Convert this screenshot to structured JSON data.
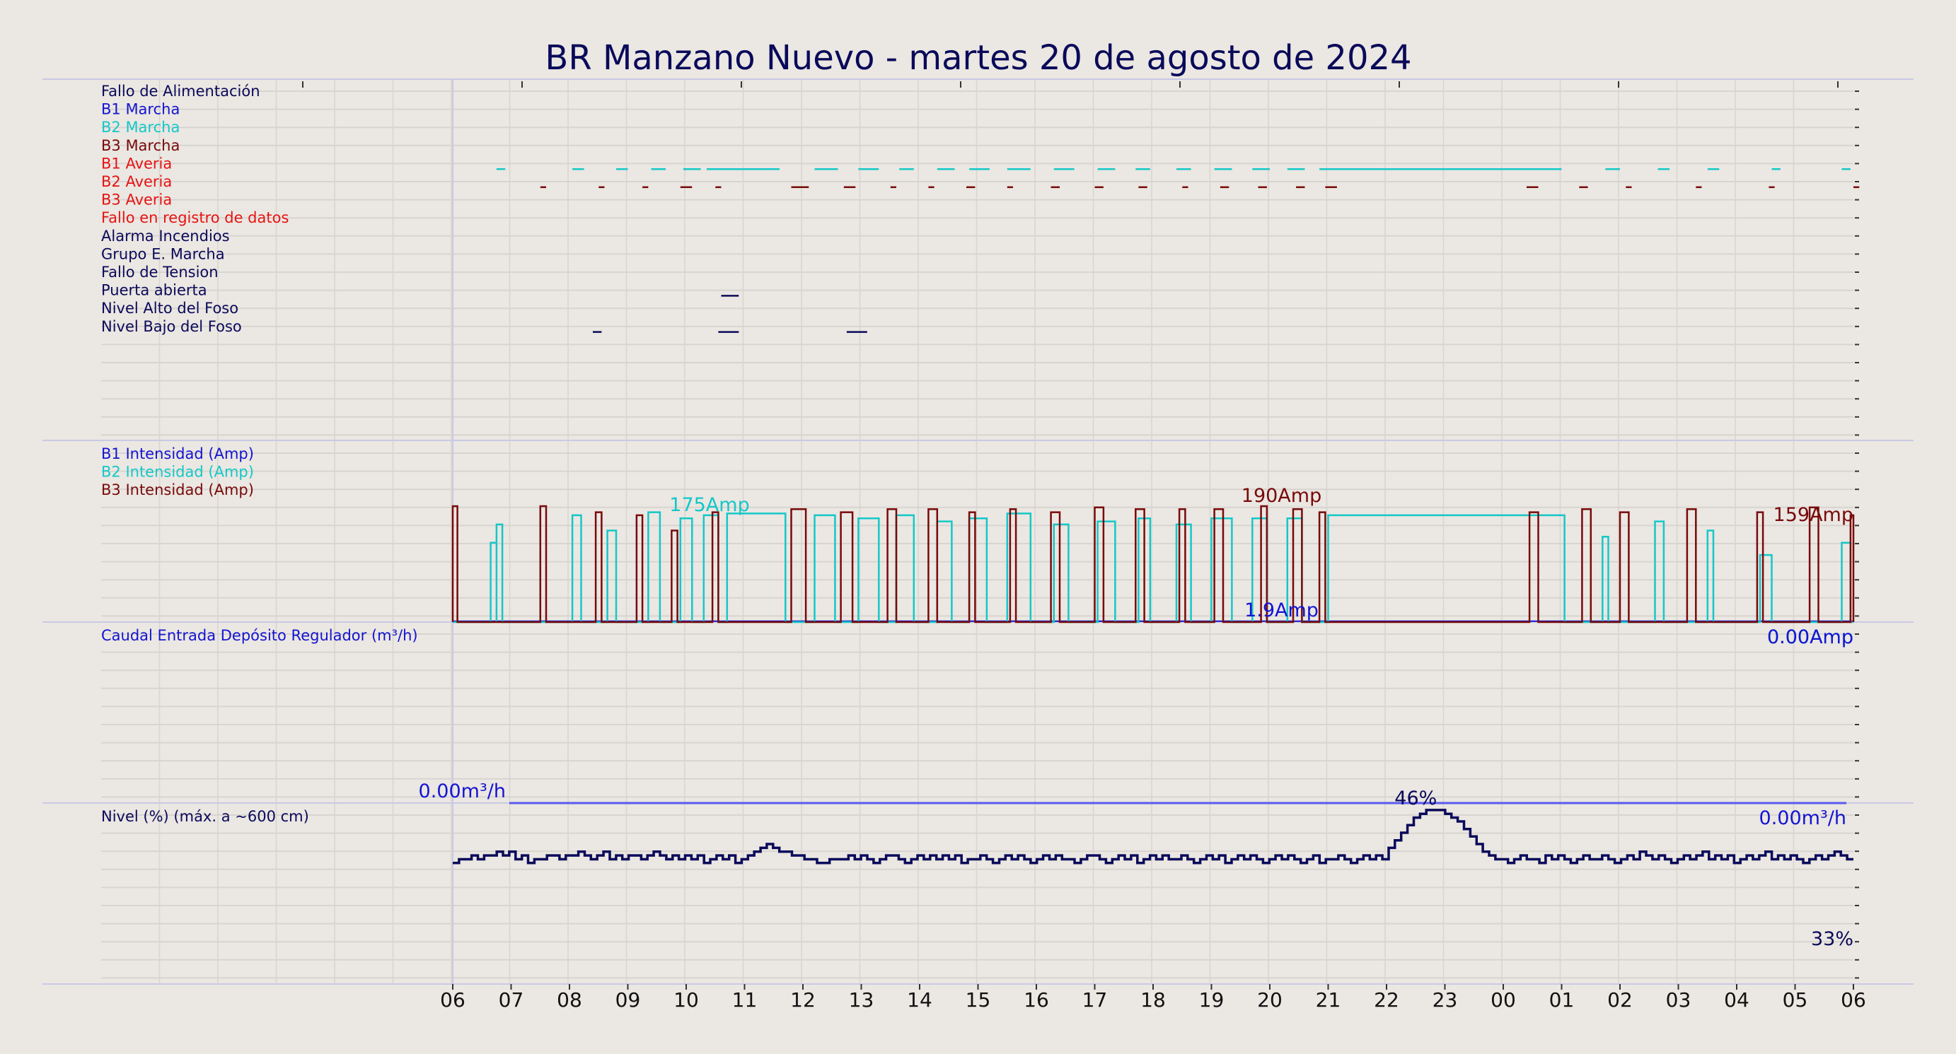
{
  "title": "BR Manzano Nuevo   -   martes 20 de agosto de 2024",
  "colors": {
    "background": "#ebe7e2",
    "grid": "#d8d4d0",
    "panel_border": "#c9c9e6",
    "navy": "#0a0a5a",
    "blue": "#1414d2",
    "cyan": "#14c8c8",
    "maroon": "#780a0a",
    "red": "#e61414",
    "flow_line": "#5a5af0"
  },
  "chart_data": [
    {
      "type": "timeline",
      "panel": "digital",
      "x_ticks": [
        "06",
        "07",
        "08",
        "09",
        "10",
        "11",
        "12",
        "13",
        "14",
        "15",
        "16",
        "17",
        "18",
        "19",
        "20",
        "21",
        "22",
        "23",
        "00",
        "01",
        "02",
        "03",
        "04",
        "05",
        "06"
      ],
      "signals": [
        {
          "name": "Fallo de Alimentación",
          "color": "navy",
          "events": []
        },
        {
          "name": "B1 Marcha",
          "color": "blue",
          "events": []
        },
        {
          "name": "B2 Marcha",
          "color": "cyan",
          "events": [
            [
              0.75,
              0.9
            ],
            [
              2.05,
              2.25
            ],
            [
              2.8,
              3.0
            ],
            [
              3.4,
              3.65
            ],
            [
              3.95,
              4.25
            ],
            [
              4.35,
              5.6
            ],
            [
              6.2,
              6.6
            ],
            [
              6.95,
              7.3
            ],
            [
              7.65,
              7.9
            ],
            [
              8.3,
              8.6
            ],
            [
              8.85,
              9.2
            ],
            [
              9.5,
              9.9
            ],
            [
              10.3,
              10.65
            ],
            [
              11.05,
              11.35
            ],
            [
              11.7,
              11.95
            ],
            [
              12.4,
              12.65
            ],
            [
              13.05,
              13.35
            ],
            [
              13.7,
              14.0
            ],
            [
              14.3,
              14.6
            ],
            [
              14.85,
              19.0
            ],
            [
              19.75,
              20.0
            ],
            [
              20.65,
              20.85
            ],
            [
              21.5,
              21.7
            ],
            [
              22.6,
              22.75
            ],
            [
              23.8,
              23.95
            ]
          ]
        },
        {
          "name": "B3 Marcha",
          "color": "maroon",
          "events": [
            [
              1.5,
              1.6
            ],
            [
              2.5,
              2.6
            ],
            [
              3.25,
              3.35
            ],
            [
              3.9,
              4.1
            ],
            [
              4.5,
              4.6
            ],
            [
              5.8,
              6.1
            ],
            [
              6.7,
              6.9
            ],
            [
              7.5,
              7.6
            ],
            [
              8.15,
              8.25
            ],
            [
              8.8,
              8.95
            ],
            [
              9.5,
              9.6
            ],
            [
              10.25,
              10.4
            ],
            [
              11.0,
              11.15
            ],
            [
              11.75,
              11.9
            ],
            [
              12.5,
              12.6
            ],
            [
              13.15,
              13.3
            ],
            [
              13.8,
              13.95
            ],
            [
              14.45,
              14.6
            ],
            [
              14.95,
              15.15
            ],
            [
              18.4,
              18.6
            ],
            [
              19.3,
              19.45
            ],
            [
              20.1,
              20.2
            ],
            [
              21.3,
              21.4
            ],
            [
              22.55,
              22.65
            ],
            [
              24.0,
              24.1
            ]
          ]
        },
        {
          "name": "B1 Averia",
          "color": "red",
          "events": []
        },
        {
          "name": "B2 Averia",
          "color": "red",
          "events": []
        },
        {
          "name": "B3 Averia",
          "color": "red",
          "events": []
        },
        {
          "name": "Fallo en registro de datos",
          "color": "red",
          "events": []
        },
        {
          "name": "Alarma Incendios",
          "color": "navy",
          "events": []
        },
        {
          "name": "Grupo E. Marcha",
          "color": "navy",
          "events": [
            [
              4.6,
              4.9
            ]
          ]
        },
        {
          "name": "Fallo de Tension",
          "color": "navy",
          "events": []
        },
        {
          "name": "Puerta abierta",
          "color": "navy",
          "events": [
            [
              2.4,
              2.55
            ],
            [
              4.55,
              4.9
            ],
            [
              6.75,
              7.1
            ]
          ]
        },
        {
          "name": "Nivel Alto del Foso",
          "color": "navy",
          "events": []
        },
        {
          "name": "Nivel Bajo del Foso",
          "color": "navy",
          "events": []
        }
      ]
    },
    {
      "type": "line",
      "panel": "current",
      "series_labels": [
        {
          "name": "B1 Intensidad (Amp)",
          "color": "blue"
        },
        {
          "name": "B2 Intensidad (Amp)",
          "color": "cyan"
        },
        {
          "name": "B3 Intensidad (Amp)",
          "color": "maroon"
        }
      ],
      "ylim": [
        0,
        200
      ],
      "b2_pulses": [
        [
          0.65,
          0.75,
          130
        ],
        [
          0.75,
          0.85,
          160
        ],
        [
          2.05,
          2.2,
          175
        ],
        [
          2.65,
          2.8,
          150
        ],
        [
          3.35,
          3.55,
          180
        ],
        [
          3.9,
          4.1,
          170
        ],
        [
          4.3,
          4.55,
          175
        ],
        [
          4.7,
          5.7,
          178
        ],
        [
          6.2,
          6.55,
          175
        ],
        [
          6.95,
          7.3,
          170
        ],
        [
          7.6,
          7.9,
          175
        ],
        [
          8.3,
          8.55,
          165
        ],
        [
          8.85,
          9.15,
          170
        ],
        [
          9.5,
          9.9,
          178
        ],
        [
          10.3,
          10.55,
          160
        ],
        [
          11.05,
          11.35,
          165
        ],
        [
          11.75,
          11.95,
          170
        ],
        [
          12.4,
          12.65,
          160
        ],
        [
          13.0,
          13.35,
          170
        ],
        [
          13.7,
          13.95,
          170
        ],
        [
          14.3,
          14.55,
          170
        ],
        [
          15.0,
          19.05,
          175
        ],
        [
          19.7,
          19.8,
          140
        ],
        [
          20.6,
          20.75,
          165
        ],
        [
          21.5,
          21.6,
          150
        ],
        [
          22.4,
          22.6,
          110
        ],
        [
          23.8,
          23.95,
          130
        ]
      ],
      "b3_pulses": [
        [
          0.0,
          0.08,
          190
        ],
        [
          1.5,
          1.6,
          190
        ],
        [
          2.45,
          2.55,
          180
        ],
        [
          3.15,
          3.25,
          175
        ],
        [
          3.75,
          3.85,
          150
        ],
        [
          4.45,
          4.55,
          180
        ],
        [
          5.8,
          6.05,
          185
        ],
        [
          6.65,
          6.85,
          180
        ],
        [
          7.45,
          7.6,
          185
        ],
        [
          8.15,
          8.3,
          185
        ],
        [
          8.85,
          8.95,
          180
        ],
        [
          9.55,
          9.65,
          185
        ],
        [
          10.25,
          10.4,
          180
        ],
        [
          11.0,
          11.15,
          188
        ],
        [
          11.7,
          11.85,
          185
        ],
        [
          12.45,
          12.55,
          185
        ],
        [
          13.05,
          13.2,
          185
        ],
        [
          13.85,
          13.95,
          190
        ],
        [
          14.4,
          14.55,
          185
        ],
        [
          14.85,
          14.95,
          180
        ],
        [
          18.45,
          18.6,
          180
        ],
        [
          19.35,
          19.5,
          185
        ],
        [
          20.0,
          20.15,
          180
        ],
        [
          21.15,
          21.3,
          185
        ],
        [
          22.35,
          22.45,
          180
        ],
        [
          23.25,
          23.4,
          188
        ],
        [
          23.95,
          24.0,
          175
        ]
      ],
      "annotations": [
        {
          "text": "175Amp",
          "color": "cyan",
          "x": 4.4,
          "y": 175
        },
        {
          "text": "190Amp",
          "color": "maroon",
          "x": 14.2,
          "y": 190
        },
        {
          "text": "159Amp",
          "color": "maroon",
          "x": 23.7,
          "y": 159
        },
        {
          "text": "1.9Amp",
          "color": "blue",
          "x": 14.2,
          "y": 1.9
        },
        {
          "text": "0.00Amp",
          "color": "cyan",
          "x": 23.7,
          "y": 0
        },
        {
          "text": "0.00Amp",
          "color": "blue",
          "x": 23.7,
          "y": 0
        }
      ]
    },
    {
      "type": "line",
      "panel": "flow",
      "series_labels": [
        {
          "name": "Caudal Entrada Depósito Regulador (m³/h)",
          "color": "blue"
        }
      ],
      "x": [
        0,
        24
      ],
      "values": [
        0.0,
        0.0
      ],
      "annotations": [
        {
          "text": "0.00m³/h",
          "color": "blue",
          "x": 0,
          "y": 0.0
        },
        {
          "text": "0.00m³/h",
          "color": "blue",
          "x": 24,
          "y": 0.0
        }
      ]
    },
    {
      "type": "line",
      "panel": "level",
      "series_labels": [
        {
          "name": "Nivel (%) (máx. a ~600 cm)",
          "color": "navy"
        }
      ],
      "ylim": [
        0,
        100
      ],
      "values": [
        32,
        33,
        33,
        34,
        33,
        34,
        34,
        35,
        34,
        35,
        33,
        34,
        32,
        33,
        33,
        34,
        34,
        33,
        34,
        34,
        35,
        34,
        33,
        34,
        35,
        33,
        34,
        33,
        34,
        34,
        33,
        34,
        35,
        34,
        33,
        34,
        33,
        34,
        33,
        34,
        32,
        33,
        34,
        33,
        34,
        32,
        33,
        34,
        35,
        36,
        37,
        36,
        35,
        35,
        34,
        34,
        33,
        33,
        32,
        32,
        33,
        33,
        33,
        34,
        33,
        34,
        33,
        32,
        33,
        34,
        34,
        33,
        32,
        33,
        34,
        33,
        34,
        33,
        34,
        33,
        34,
        32,
        33,
        33,
        34,
        33,
        32,
        33,
        34,
        33,
        34,
        33,
        32,
        33,
        34,
        33,
        34,
        33,
        33,
        32,
        33,
        34,
        34,
        33,
        32,
        33,
        34,
        33,
        34,
        32,
        33,
        34,
        33,
        34,
        33,
        33,
        34,
        33,
        32,
        33,
        34,
        33,
        34,
        32,
        33,
        34,
        33,
        34,
        33,
        32,
        33,
        34,
        33,
        34,
        33,
        32,
        33,
        34,
        32,
        33,
        33,
        34,
        33,
        32,
        33,
        34,
        33,
        34,
        33,
        36,
        38,
        40,
        42,
        44,
        45,
        46,
        46,
        46,
        45,
        44,
        43,
        41,
        39,
        37,
        35,
        34,
        33,
        33,
        32,
        33,
        34,
        33,
        33,
        32,
        34,
        33,
        34,
        33,
        32,
        33,
        34,
        33,
        33,
        34,
        33,
        32,
        33,
        34,
        33,
        35,
        34,
        33,
        34,
        33,
        32,
        33,
        34,
        33,
        34,
        35,
        33,
        34,
        33,
        34,
        32,
        33,
        34,
        33,
        34,
        35,
        33,
        34,
        33,
        34,
        33,
        32,
        33,
        34,
        33,
        34,
        35,
        34,
        33
      ],
      "annotations": [
        {
          "text": "46%",
          "color": "navy",
          "x": 16.5,
          "y": 46
        },
        {
          "text": "33%",
          "color": "navy",
          "x": 24,
          "y": 33
        }
      ]
    }
  ]
}
